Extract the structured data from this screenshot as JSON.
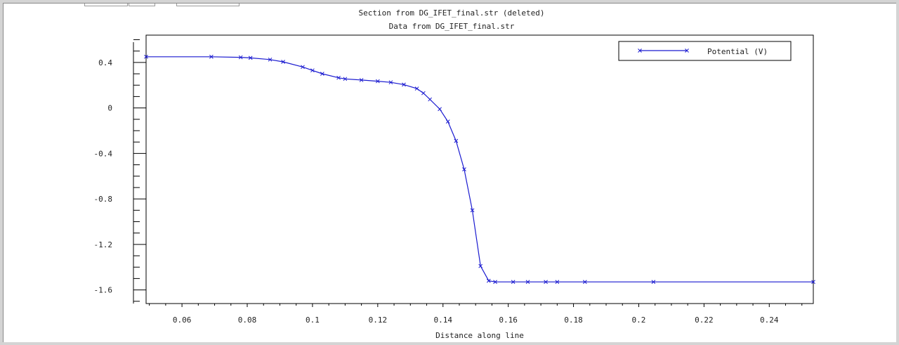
{
  "window": {
    "colors": {
      "background": "#ffffff",
      "frame": "#d4d4d4",
      "curve": "#1a1ad0",
      "axis": "#000000"
    }
  },
  "chart_data": {
    "type": "line",
    "title": "Section from DG_IFET_final.str (deleted)",
    "subtitle": "Data from DG_IFET_final.str",
    "xlabel": "Distance along line",
    "ylabel": "",
    "xlim": [
      0.049,
      0.2535
    ],
    "ylim": [
      -1.72,
      0.64
    ],
    "x_ticks": [
      0.06,
      0.08,
      0.1,
      0.12,
      0.14,
      0.16,
      0.18,
      0.2,
      0.22,
      0.24
    ],
    "x_tick_labels": [
      "0.06",
      "0.08",
      "0.1",
      "0.12",
      "0.14",
      "0.16",
      "0.18",
      "0.2",
      "0.22",
      "0.24"
    ],
    "y_ticks": [
      0.4,
      0,
      -0.4,
      -0.8,
      -1.2,
      -1.6
    ],
    "y_tick_labels": [
      "0.4",
      "0",
      "-0.4",
      "-0.8",
      "-1.2",
      "-1.6"
    ],
    "grid": false,
    "legend_position": "top-right",
    "series": [
      {
        "name": "Potential (V)",
        "marker": "x",
        "color": "#1a1ad0",
        "x": [
          0.049,
          0.069,
          0.078,
          0.081,
          0.087,
          0.091,
          0.097,
          0.1,
          0.103,
          0.108,
          0.11,
          0.115,
          0.12,
          0.124,
          0.128,
          0.132,
          0.134,
          0.136,
          0.139,
          0.1415,
          0.144,
          0.1465,
          0.149,
          0.1515,
          0.154,
          0.156,
          0.1615,
          0.166,
          0.1715,
          0.175,
          0.1835,
          0.2045,
          0.2535
        ],
        "y": [
          0.45,
          0.45,
          0.445,
          0.44,
          0.425,
          0.405,
          0.36,
          0.33,
          0.3,
          0.265,
          0.255,
          0.245,
          0.235,
          0.225,
          0.205,
          0.17,
          0.13,
          0.075,
          -0.01,
          -0.12,
          -0.29,
          -0.54,
          -0.9,
          -1.39,
          -1.52,
          -1.53,
          -1.53,
          -1.53,
          -1.53,
          -1.53,
          -1.53,
          -1.53,
          -1.53
        ]
      }
    ]
  }
}
